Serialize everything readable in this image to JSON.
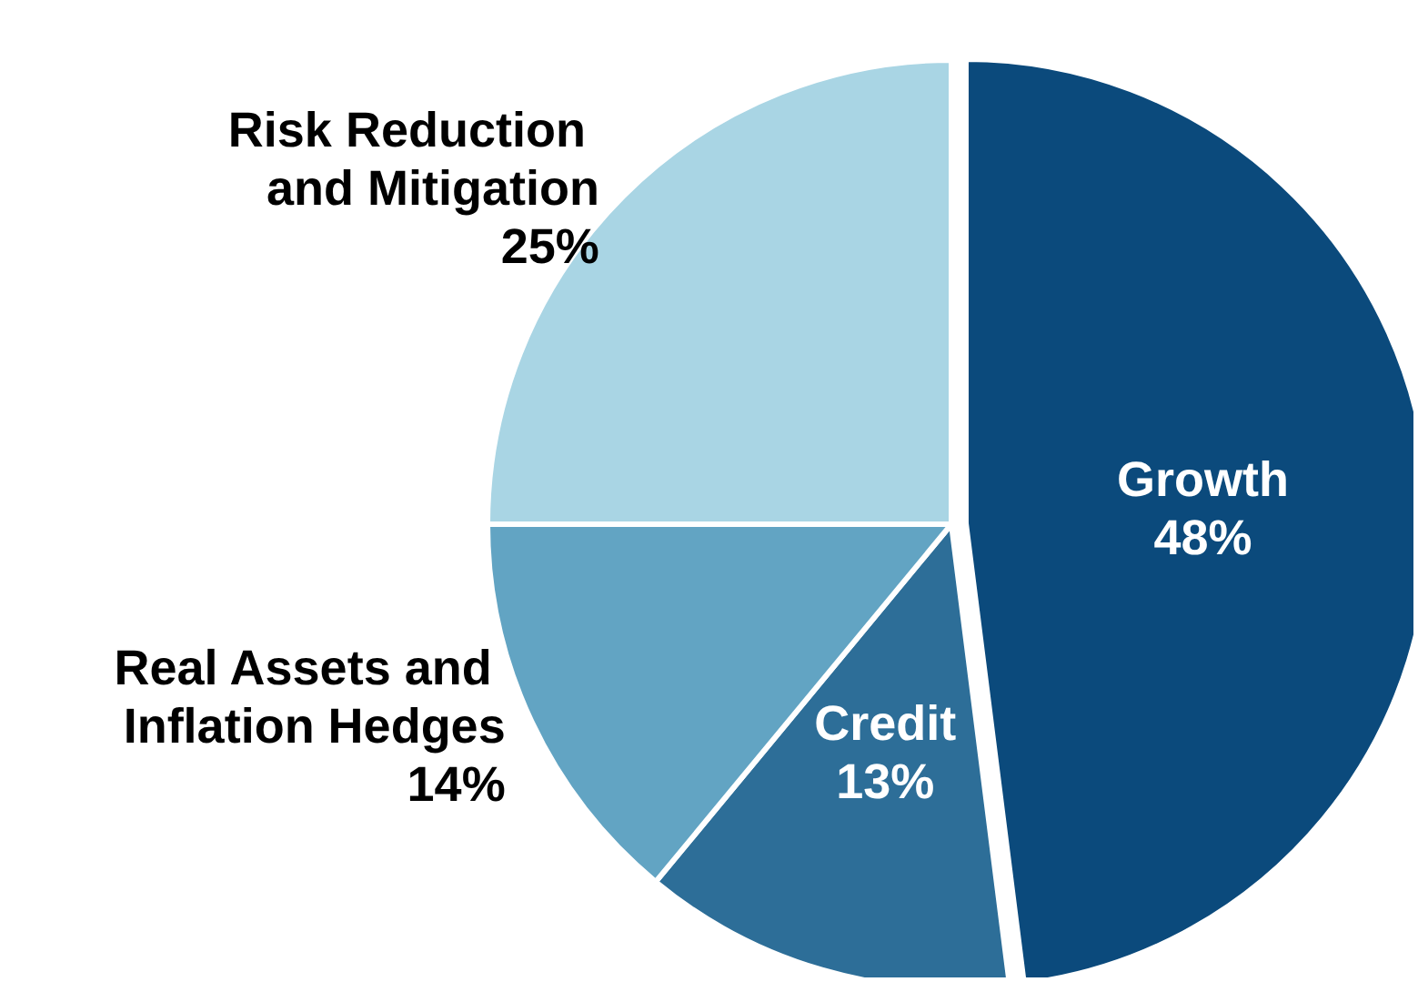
{
  "chart_data": {
    "type": "pie",
    "categories": [
      "Growth",
      "Credit",
      "Real Assets and Inflation Hedges",
      "Risk Reduction and Mitigation"
    ],
    "values": [
      48,
      13,
      14,
      25
    ],
    "colors": [
      "#0b4a7c",
      "#2d6e98",
      "#62a4c3",
      "#a9d5e4"
    ],
    "value_labels": [
      "48%",
      "13%",
      "14%",
      "25%"
    ],
    "legend": false
  }
}
